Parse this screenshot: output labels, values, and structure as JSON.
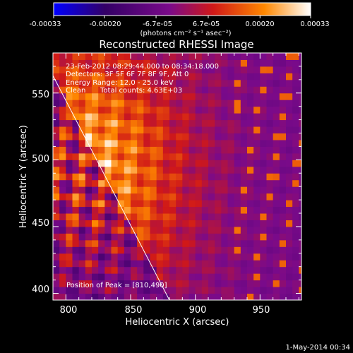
{
  "colorbar": {
    "tick_labels": [
      "-0.00033",
      "-0.00020",
      "-6.7e-05",
      "6.7e-05",
      "0.00020",
      "0.00033"
    ],
    "tick_values": [
      -0.00033,
      -0.0002,
      -6.7e-05,
      6.7e-05,
      0.0002,
      0.00033
    ],
    "range": [
      -0.00033,
      0.00033
    ],
    "units_label": "(photons cm⁻² s⁻¹ asec⁻²)",
    "colors": [
      "#0000ff",
      "#330066",
      "#7a0a8a",
      "#d01818",
      "#ff8800",
      "#ffffff"
    ]
  },
  "chart_data": {
    "type": "heatmap",
    "title": "Reconstructed RHESSI Image",
    "xlabel": "Heliocentric X (arcsec)",
    "ylabel": "Heliocentric Y (arcsec)",
    "xlim": [
      790,
      982
    ],
    "ylim": [
      395,
      580
    ],
    "xticks": [
      800,
      850,
      900,
      950
    ],
    "yticks": [
      400,
      450,
      500,
      550
    ],
    "xtick_labels": [
      "800",
      "850",
      "900",
      "950"
    ],
    "ytick_labels": [
      "400",
      "450",
      "500",
      "550"
    ],
    "annotations": {
      "time_range": "23-Feb-2012 08:29:44.000 to 08:34:18.000",
      "detectors": "Detectors: 3F 5F 6F 7F 8F 9F, Att 0",
      "energy_range": "Energy Range: 12.0 - 25.0 keV",
      "algorithm": "Clean",
      "total_counts": "Total counts: 4.63E+03",
      "peak": "Position of Peak = [810,490]"
    },
    "peak_position": [
      810,
      490
    ],
    "limb_line": [
      [
        790,
        563
      ],
      [
        880,
        395
      ]
    ]
  },
  "footer": {
    "date": "1-May-2014 00:34"
  }
}
